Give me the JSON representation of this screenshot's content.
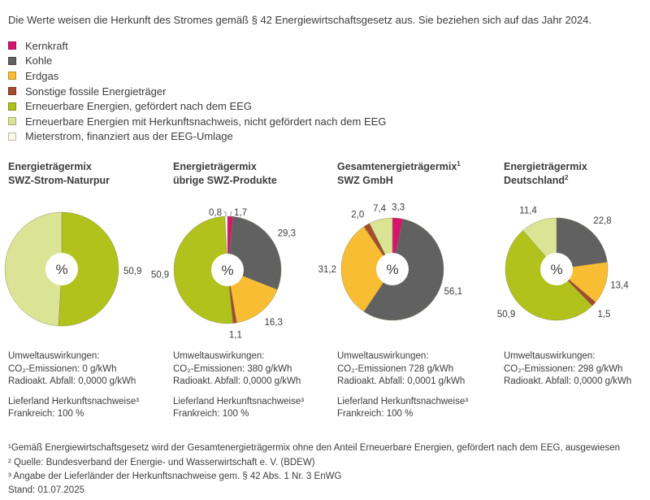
{
  "intro": "Die Werte weisen die Herkunft des Stromes gemäß § 42 Energiewirtschaftsgesetz aus. Sie beziehen sich auf das Jahr 2024.",
  "legend": [
    {
      "label": "Kernkraft",
      "color": "#d6156f"
    },
    {
      "label": "Kohle",
      "color": "#616161"
    },
    {
      "label": "Erdgas",
      "color": "#f9bd33"
    },
    {
      "label": "Sonstige fossile Energieträger",
      "color": "#a44a2e"
    },
    {
      "label": "Erneuerbare Energien, gefördert nach dem EEG",
      "color": "#b2c21d"
    },
    {
      "label": "Erneuerbare Energien mit Herkunftsnachweis, nicht gefördert nach dem EEG",
      "color": "#dbe494"
    },
    {
      "label": "Mieterstrom, finanziert aus der EEG-Umlage",
      "color": "#fbf8e2"
    }
  ],
  "center_label": "%",
  "chart_data": [
    {
      "type": "pie",
      "title_line1": "Energieträgermix",
      "title_line2": "SWZ-Strom-Naturpur",
      "title_sup": "",
      "values": [
        null,
        null,
        null,
        null,
        50.9,
        49.1,
        null
      ],
      "labels": [
        "",
        "",
        "",
        "",
        "50,9",
        "49,1",
        ""
      ]
    },
    {
      "type": "pie",
      "title_line1": "Energieträgermix",
      "title_line2": "übrige SWZ-Produkte",
      "title_sup": "",
      "values": [
        1.7,
        29.3,
        16.3,
        1.1,
        50.9,
        null,
        0.8
      ],
      "labels": [
        "1,7",
        "29,3",
        "16,3",
        "1,1",
        "50,9",
        "",
        "0,8"
      ]
    },
    {
      "type": "pie",
      "title_line1": "Gesamtenergieträgermix",
      "title_line2": "SWZ GmbH",
      "title_sup": "1",
      "values": [
        3.3,
        56.1,
        31.2,
        2.0,
        null,
        7.4,
        null
      ],
      "labels": [
        "3,3",
        "56,1",
        "31,2",
        "2,0",
        "",
        "7,4",
        ""
      ]
    },
    {
      "type": "pie",
      "title_line1": "Energieträgermix",
      "title_line2": "Deutschland",
      "title_sup": "2",
      "values": [
        null,
        22.8,
        13.4,
        1.5,
        50.9,
        11.4,
        null
      ],
      "labels": [
        "",
        "22,8",
        "13,4",
        "1,5",
        "50,9",
        "11,4",
        ""
      ]
    }
  ],
  "info": [
    {
      "heading": "Umweltauswirkungen:",
      "co2": "CO₂-Emissionen: 0 g/kWh",
      "waste": "Radioakt. Abfall: 0,0000 g/kWh",
      "origin_heading": "Lieferland Herkunftsnachweise³",
      "origin": "Frankreich: 100 %"
    },
    {
      "heading": "Umweltauswirkungen:",
      "co2": "CO₂-Emissionen: 380 g/kWh",
      "waste": "Radioakt. Abfall: 0,0000 g/kWh",
      "origin_heading": "Lieferland Herkunftsnachweise³",
      "origin": "Frankreich: 100 %"
    },
    {
      "heading": "Umweltauswirkungen:",
      "co2": "CO₂-Emissionen 728 g/kWh",
      "waste": "Radioakt. Abfall: 0,0001 g/kWh",
      "origin_heading": "Lieferland Herkunftsnachweise³",
      "origin": "Frankreich: 100 %"
    },
    {
      "heading": "Umweltauswirkungen:",
      "co2": "CO₂-Emissionen: 298 g/kWh",
      "waste": "Radioakt. Abfall: 0,0000 g/kWh"
    }
  ],
  "footnotes": [
    "¹Gemäß Energiewirtschaftsgesetz wird der Gesamtenergieträgermix ohne den Anteil Erneuerbare Energien, gefördert nach dem EEG, ausgewiesen",
    "² Quelle: Bundesverband der Energie- und Wasserwirtschaft e. V. (BDEW)",
    "³ Angabe der Lieferländer der Herkunftsnachweise gem. § 42 Abs. 1 Nr. 3 EnWG"
  ],
  "stand": "Stand: 01.07.2025"
}
